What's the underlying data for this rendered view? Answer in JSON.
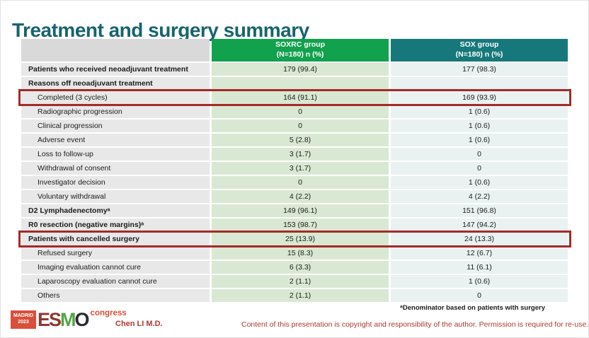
{
  "slide": {
    "title": "Treatment and surgery summary",
    "footnote": "ᵃDenominator based on patients with surgery",
    "presenter": "Chen LI M.D.",
    "copyright": "Content of this presentation is copyright and responsibility of the author. Permission is required for re-use."
  },
  "logo": {
    "venue": "MADRID",
    "year": "2023",
    "letters": [
      "E",
      "S",
      "M",
      "O"
    ],
    "suffix": "congress"
  },
  "table": {
    "header": {
      "col1": {
        "name": "SOXRC group",
        "sub": "(N=180) n (%)"
      },
      "col2": {
        "name": "SOX group",
        "sub": "(N=180) n (%)"
      }
    },
    "rows": [
      {
        "label": "Patients who received neoadjuvant treatment",
        "soxrc": "179 (99.4)",
        "sox": "177 (98.3)",
        "bold": true,
        "indent": false,
        "highlight": false
      },
      {
        "label": "Reasons off neoadjuvant treatment",
        "soxrc": "",
        "sox": "",
        "bold": true,
        "indent": false,
        "highlight": false
      },
      {
        "label": "Completed (3 cycles)",
        "soxrc": "164 (91.1)",
        "sox": "169 (93.9)",
        "bold": false,
        "indent": true,
        "highlight": true
      },
      {
        "label": "Radiographic progression",
        "soxrc": "0",
        "sox": "1 (0.6)",
        "bold": false,
        "indent": true,
        "highlight": false
      },
      {
        "label": "Clinical progression",
        "soxrc": "0",
        "sox": "1 (0.6)",
        "bold": false,
        "indent": true,
        "highlight": false
      },
      {
        "label": "Adverse event",
        "soxrc": "5 (2.8)",
        "sox": "1 (0.6)",
        "bold": false,
        "indent": true,
        "highlight": false
      },
      {
        "label": "Loss to follow-up",
        "soxrc": "3 (1.7)",
        "sox": "0",
        "bold": false,
        "indent": true,
        "highlight": false
      },
      {
        "label": "Withdrawal of consent",
        "soxrc": "3 (1.7)",
        "sox": "0",
        "bold": false,
        "indent": true,
        "highlight": false
      },
      {
        "label": "Investigator decision",
        "soxrc": "0",
        "sox": "1 (0.6)",
        "bold": false,
        "indent": true,
        "highlight": false
      },
      {
        "label": "Voluntary withdrawal",
        "soxrc": "4 (2.2)",
        "sox": "4 (2.2)",
        "bold": false,
        "indent": true,
        "highlight": false
      },
      {
        "label": "D2 Lymphadenectomyᵃ",
        "soxrc": "149 (96.1)",
        "sox": "151 (96.8)",
        "bold": true,
        "indent": false,
        "highlight": false
      },
      {
        "label": "R0 resection (negative margins)ᵃ",
        "soxrc": "153 (98.7)",
        "sox": "147 (94.2)",
        "bold": true,
        "indent": false,
        "highlight": false
      },
      {
        "label": "Patients with cancelled surgery",
        "soxrc": "25 (13.9)",
        "sox": "24 (13.3)",
        "bold": true,
        "indent": false,
        "highlight": true
      },
      {
        "label": "Refused surgery",
        "soxrc": "15 (8.3)",
        "sox": "12 (6.7)",
        "bold": false,
        "indent": true,
        "highlight": false
      },
      {
        "label": "Imaging evaluation cannot cure",
        "soxrc": "6 (3.3)",
        "sox": "11 (6.1)",
        "bold": false,
        "indent": true,
        "highlight": false
      },
      {
        "label": "Laparoscopy evaluation cannot cure",
        "soxrc": "2 (1.1)",
        "sox": "1 (0.6)",
        "bold": false,
        "indent": true,
        "highlight": false
      },
      {
        "label": "Others",
        "soxrc": "2 (1.1)",
        "sox": "0",
        "bold": false,
        "indent": true,
        "highlight": false
      }
    ]
  },
  "colors": {
    "title-teal": "#17646e",
    "header-green": "#12a14d",
    "header-teal": "#17787b",
    "label-header-bg": "#d9d9d9",
    "label-col-bg": "#e8e8e8",
    "soxrc-col-bg": "#d9e8d2",
    "sox-col-bg": "#e9f2f1",
    "highlight-red": "#a32a28",
    "footer-red": "#b0382f",
    "logo-red": "#d94f3b",
    "logo-green": "#56a345",
    "logo-maroon": "#8e3831",
    "logo-dark": "#2a2a35"
  }
}
